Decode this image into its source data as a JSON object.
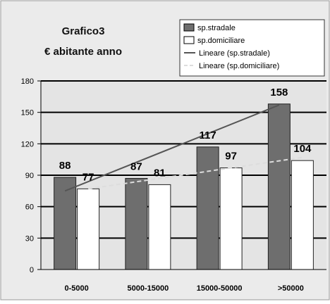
{
  "chart_data": {
    "type": "bar",
    "title_line1": "Grafico3",
    "title_line2": "€ abitante anno",
    "categories": [
      "0-5000",
      "5000-15000",
      "15000-50000",
      ">50000"
    ],
    "series": [
      {
        "name": "sp.stradale",
        "values": [
          88,
          87,
          117,
          158
        ],
        "value_labels": [
          "88",
          "87",
          "117",
          "158"
        ],
        "color": "#6e6e6e"
      },
      {
        "name": "sp.domiciliare",
        "values": [
          77,
          81,
          97,
          104
        ],
        "value_labels": [
          "77",
          "81",
          "97",
          "104"
        ],
        "color": "#ffffff"
      }
    ],
    "trendlines": [
      {
        "name": "Lineare (sp.stradale)",
        "start": 75,
        "end": 157,
        "color": "#555555",
        "style": "solid"
      },
      {
        "name": "Lineare (sp.domiciliare)",
        "start": 77,
        "end": 107,
        "color": "#dddddd",
        "style": "dashed"
      }
    ],
    "yticks": [
      0,
      30,
      60,
      90,
      120,
      150,
      180
    ],
    "ylim": [
      0,
      180
    ],
    "grid": true,
    "legend_position": "top-right",
    "background_color": "#e8e8e8"
  }
}
